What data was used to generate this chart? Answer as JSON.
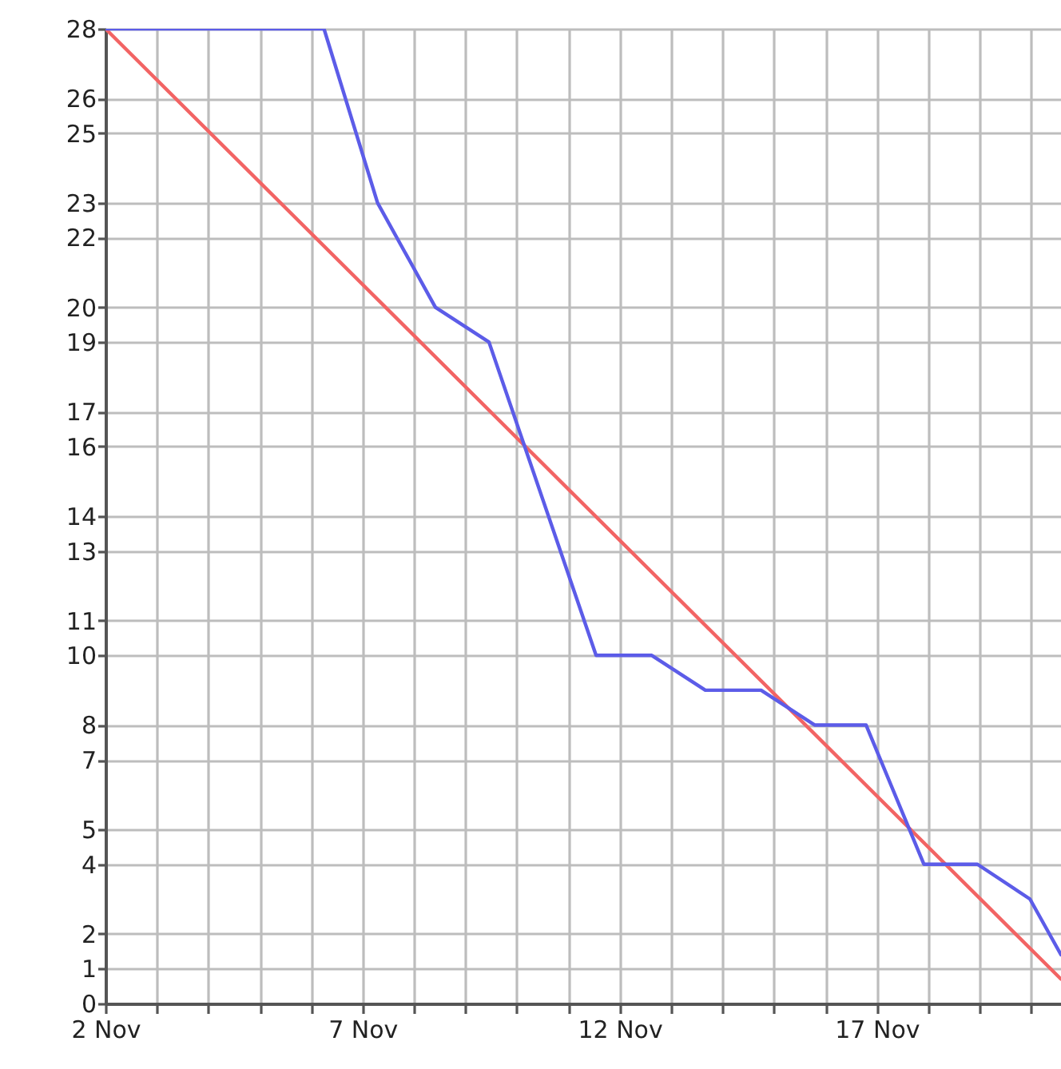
{
  "chart_data": {
    "type": "line",
    "xlim": [
      "--11-02",
      "--11-20T14:00"
    ],
    "xticks": [
      {
        "value": "--11-02",
        "label": "2 Nov"
      },
      {
        "value": "--11-03",
        "label": null
      },
      {
        "value": "--11-04",
        "label": null
      },
      {
        "value": "--11-05",
        "label": null
      },
      {
        "value": "--11-06",
        "label": null
      },
      {
        "value": "--11-07",
        "label": "7 Nov"
      },
      {
        "value": "--11-08",
        "label": null
      },
      {
        "value": "--11-09",
        "label": null
      },
      {
        "value": "--11-10",
        "label": null
      },
      {
        "value": "--11-11",
        "label": null
      },
      {
        "value": "--11-12",
        "label": "12 Nov"
      },
      {
        "value": "--11-13",
        "label": null
      },
      {
        "value": "--11-14",
        "label": null
      },
      {
        "value": "--11-15",
        "label": null
      },
      {
        "value": "--11-16",
        "label": null
      },
      {
        "value": "--11-17",
        "label": "17 Nov"
      },
      {
        "value": "--11-18",
        "label": null
      },
      {
        "value": "--11-19",
        "label": null
      },
      {
        "value": "--11-20",
        "label": null
      }
    ],
    "ylim": [
      0,
      28
    ],
    "yticks": [
      0,
      1,
      2,
      4,
      5,
      7,
      8,
      10,
      11,
      13,
      14,
      16,
      17,
      19,
      20,
      22,
      23,
      25,
      26,
      28
    ],
    "grid": true,
    "series": [
      {
        "color": "#f26464",
        "x": [
          "--11-02",
          "--11-20T14:00"
        ],
        "values": [
          28,
          0.7
        ]
      },
      {
        "color": "#5c5ce8",
        "x": [
          "--11-02",
          "--11-06T06:00",
          "--11-07T07:00",
          "--11-08T10:00",
          "--11-09T11:00",
          "--11-11T13:00",
          "--11-12T15:00",
          "--11-13T16:00",
          "--11-14T18:00",
          "--11-15T19:00",
          "--11-16T19:00",
          "--11-17T22:00",
          "--11-18T23:00",
          "--11-19T23:30",
          "--11-20T14:00"
        ],
        "values": [
          28,
          28,
          23,
          20,
          19,
          10,
          10,
          9,
          9,
          8,
          8,
          4,
          4,
          3,
          1.4
        ]
      }
    ]
  }
}
